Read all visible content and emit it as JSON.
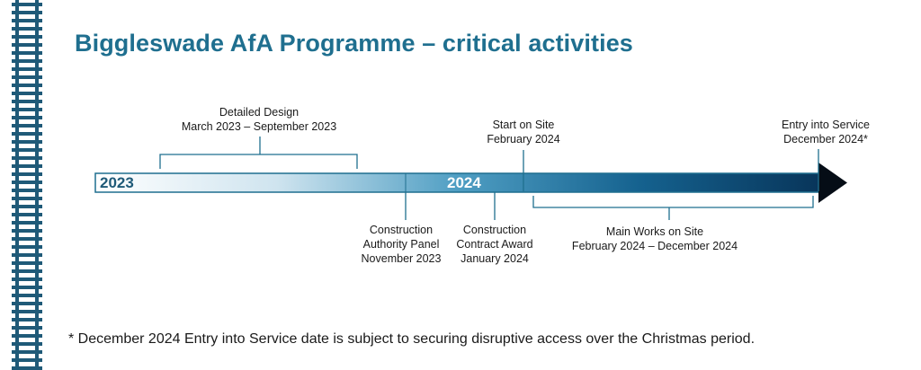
{
  "title": "Biggleswade AfA Programme – critical activities",
  "colors": {
    "brand": "#1f6f8f",
    "bar_start": "#ffffff",
    "bar_end": "#08355a",
    "text": "#1a1a1a"
  },
  "timeline": {
    "years": [
      "2023",
      "2024"
    ],
    "milestones_above": [
      {
        "name": "Detailed Design",
        "date": "March 2023 – September 2023",
        "kind": "span"
      },
      {
        "name": "Start on Site",
        "date": "February 2024",
        "kind": "point"
      },
      {
        "name": "Entry into Service",
        "date": "December 2024*",
        "kind": "point"
      }
    ],
    "milestones_below": [
      {
        "lines": [
          "Construction",
          "Authority Panel",
          "November 2023"
        ],
        "kind": "point"
      },
      {
        "lines": [
          "Construction",
          "Contract Award",
          "January 2024"
        ],
        "kind": "point"
      },
      {
        "name": "Main Works on Site",
        "date": "February 2024 – December 2024",
        "kind": "span"
      }
    ]
  },
  "footnote": "* December 2024 Entry into Service date is subject to securing disruptive access over the Christmas period."
}
